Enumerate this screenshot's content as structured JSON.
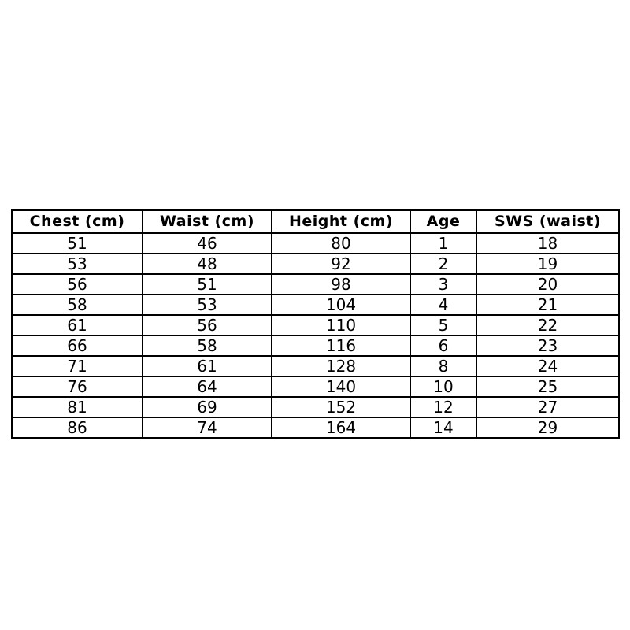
{
  "colors": {
    "background": "#ffffff",
    "border": "#000000",
    "text": "#000000"
  },
  "chart_data": {
    "type": "table",
    "title": "",
    "columns": [
      "Chest (cm)",
      "Waist (cm)",
      "Height (cm)",
      "Age",
      "SWS (waist)"
    ],
    "rows": [
      [
        "51",
        "46",
        "80",
        "1",
        "18"
      ],
      [
        "53",
        "48",
        "92",
        "2",
        "19"
      ],
      [
        "56",
        "51",
        "98",
        "3",
        "20"
      ],
      [
        "58",
        "53",
        "104",
        "4",
        "21"
      ],
      [
        "61",
        "56",
        "110",
        "5",
        "22"
      ],
      [
        "66",
        "58",
        "116",
        "6",
        "23"
      ],
      [
        "71",
        "61",
        "128",
        "8",
        "24"
      ],
      [
        "76",
        "64",
        "140",
        "10",
        "25"
      ],
      [
        "81",
        "69",
        "152",
        "12",
        "27"
      ],
      [
        "86",
        "74",
        "164",
        "14",
        "29"
      ]
    ]
  }
}
